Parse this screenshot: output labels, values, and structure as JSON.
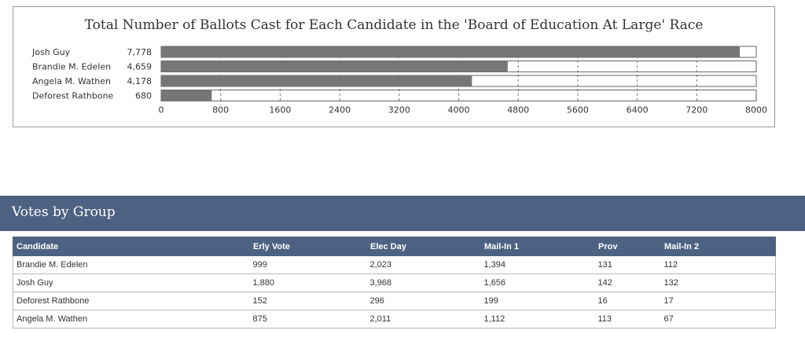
{
  "chart_data": {
    "type": "bar",
    "orientation": "horizontal",
    "title": "Total Number of Ballots Cast for Each Candidate in the 'Board of Education At Large' Race",
    "categories": [
      "Josh Guy",
      "Brandie M. Edelen",
      "Angela M. Wathen",
      "Deforest Rathbone"
    ],
    "value_labels": [
      "7,778",
      "4,659",
      "4,178",
      "680"
    ],
    "values": [
      7778,
      4659,
      4178,
      680
    ],
    "xlim": [
      0,
      8000
    ],
    "x_ticks": [
      "0",
      "800",
      "1600",
      "2400",
      "3200",
      "4000",
      "4800",
      "5600",
      "6400",
      "7200",
      "8000"
    ],
    "grid": "vertical dashed",
    "colors": {
      "bar": "#767676",
      "track_border": "#666666",
      "grid": "#777777"
    }
  },
  "group": {
    "title": "Votes by Group",
    "header_color": "#4d6282"
  },
  "table": {
    "columns": [
      "Candidate",
      "Erly Vote",
      "Elec Day",
      "Mail-In 1",
      "Prov",
      "Mail-In 2"
    ],
    "rows": [
      [
        "Brandie M. Edelen",
        "999",
        "2,023",
        "1,394",
        "131",
        "112"
      ],
      [
        "Josh Guy",
        "1,880",
        "3,968",
        "1,656",
        "142",
        "132"
      ],
      [
        "Deforest Rathbone",
        "152",
        "296",
        "199",
        "16",
        "17"
      ],
      [
        "Angela M. Wathen",
        "875",
        "2,011",
        "1,112",
        "113",
        "67"
      ]
    ]
  }
}
